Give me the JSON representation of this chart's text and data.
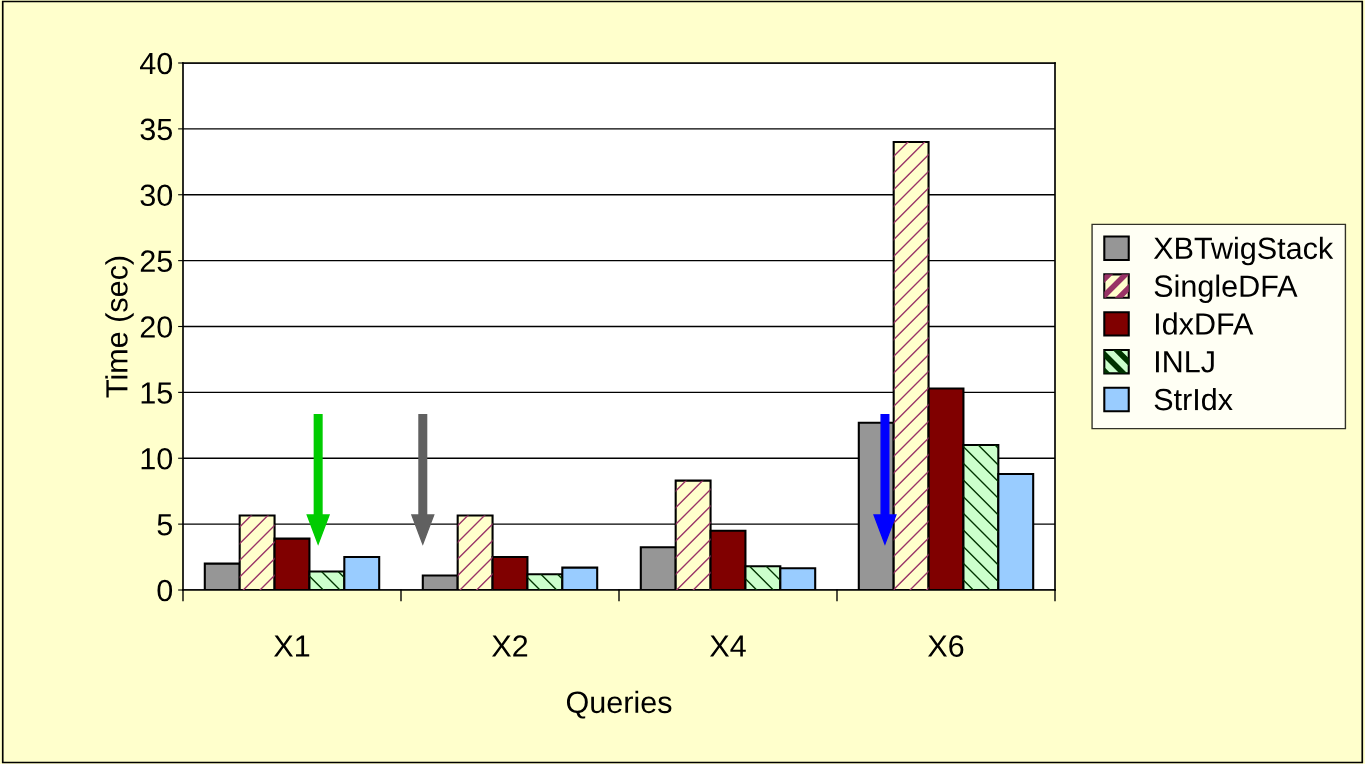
{
  "chart_data": {
    "type": "bar",
    "xlabel": "Queries",
    "ylabel": "Time (sec)",
    "categories": [
      "X1",
      "X2",
      "X4",
      "X6"
    ],
    "series": [
      {
        "name": "XBTwigStack",
        "color": "#969696",
        "values": [
          2.0,
          1.1,
          3.25,
          12.7
        ]
      },
      {
        "name": "SingleDFA",
        "color": "#ffffcc",
        "values": [
          5.65,
          5.65,
          8.3,
          34.0
        ]
      },
      {
        "name": "IdxDFA",
        "color": "#800000",
        "values": [
          3.9,
          2.5,
          4.5,
          15.3
        ]
      },
      {
        "name": "INLJ",
        "color": "#ccffcc",
        "values": [
          1.4,
          1.2,
          1.8,
          11.0
        ]
      },
      {
        "name": "StrIdx",
        "color": "#99ccff",
        "values": [
          2.5,
          1.7,
          1.65,
          8.8
        ]
      }
    ],
    "ylim": [
      0,
      40
    ],
    "yticks": [
      0,
      5,
      10,
      15,
      20,
      25,
      30,
      35,
      40
    ],
    "grid": "y",
    "legend": "right"
  }
}
